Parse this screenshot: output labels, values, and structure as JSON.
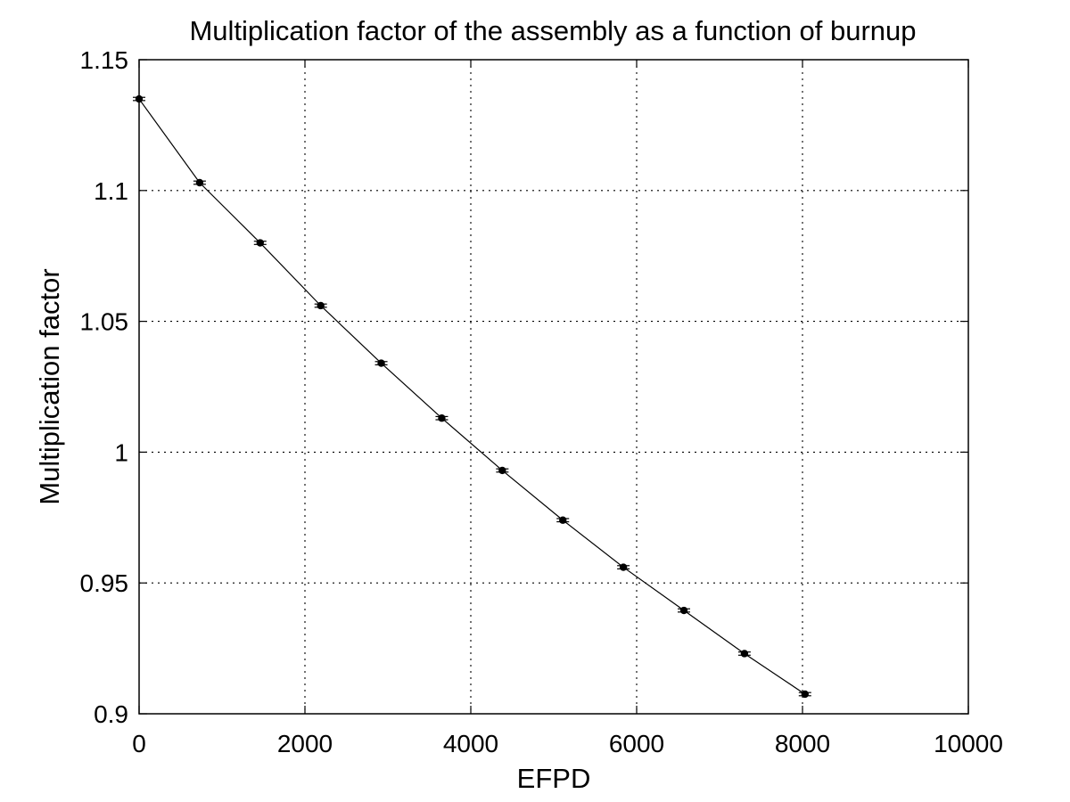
{
  "chart_data": {
    "type": "line",
    "title": "Multiplication factor of the assembly as a function of burnup",
    "xlabel": "EFPD",
    "ylabel": "Multiplication factor",
    "xlim": [
      0,
      10000
    ],
    "ylim": [
      0.9,
      1.15
    ],
    "grid": true,
    "x_ticks": [
      0,
      2000,
      4000,
      6000,
      8000,
      10000
    ],
    "x_tick_labels": [
      "0",
      "2000",
      "4000",
      "6000",
      "8000",
      "10000"
    ],
    "y_ticks": [
      0.9,
      0.95,
      1.0,
      1.05,
      1.1,
      1.15
    ],
    "y_tick_labels": [
      "0.9",
      "0.95",
      "1",
      "1.05",
      "1.1",
      "1.15"
    ],
    "series": [
      {
        "marker": "filled-circle",
        "line_color": "#000000",
        "error_bars": true,
        "points": [
          {
            "x": 0,
            "y": 1.135
          },
          {
            "x": 730,
            "y": 1.103
          },
          {
            "x": 1460,
            "y": 1.08
          },
          {
            "x": 2190,
            "y": 1.056
          },
          {
            "x": 2920,
            "y": 1.034
          },
          {
            "x": 3650,
            "y": 1.013
          },
          {
            "x": 4380,
            "y": 0.993
          },
          {
            "x": 5110,
            "y": 0.974
          },
          {
            "x": 5840,
            "y": 0.956
          },
          {
            "x": 6570,
            "y": 0.9395
          },
          {
            "x": 7300,
            "y": 0.923
          },
          {
            "x": 8030,
            "y": 0.9075
          }
        ]
      }
    ]
  }
}
